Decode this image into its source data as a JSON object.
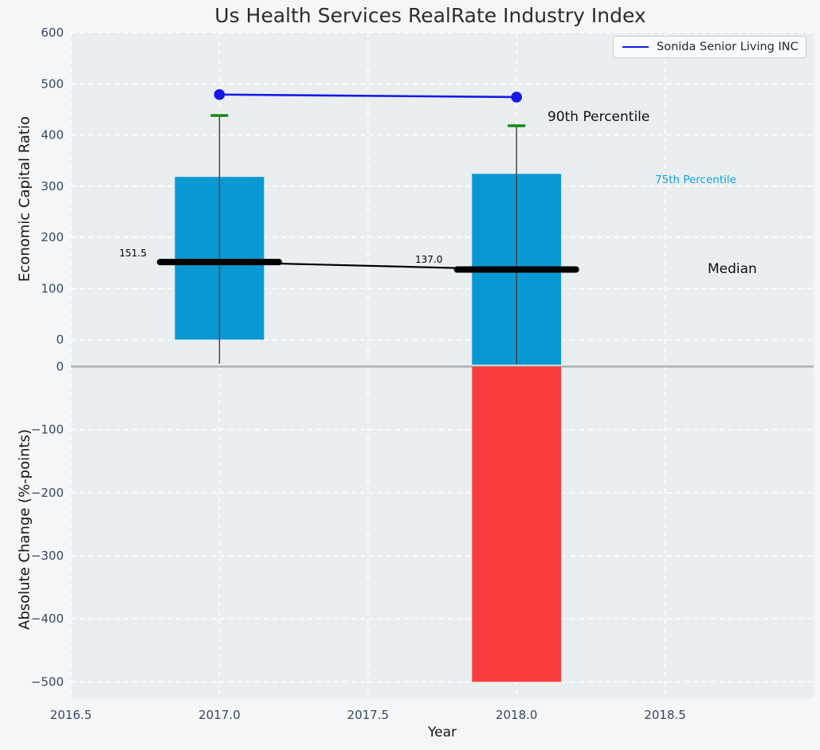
{
  "chart_data": {
    "type": "mixed",
    "title": "Us Health Services RealRate Industry Index",
    "xlabel": "Year",
    "xlim": [
      2016.5,
      2019.0
    ],
    "xticks": [
      {
        "v": 2016.5,
        "label": "2016.5"
      },
      {
        "v": 2017.0,
        "label": "2017.0"
      },
      {
        "v": 2017.5,
        "label": "2017.5"
      },
      {
        "v": 2018.0,
        "label": "2018.0"
      },
      {
        "v": 2018.5,
        "label": "2018.5"
      }
    ],
    "bar_half_width_years": 0.15,
    "grid": true,
    "legend": {
      "position": "upper right",
      "entries": [
        {
          "label": "Sonida Senior Living INC",
          "color": "#1717e8"
        }
      ]
    },
    "colors": {
      "figure_bg": "#f4f6f8",
      "axes_bg": "#e9eef0",
      "grid": "#ffffff",
      "box_fill": "#0999d2",
      "neg_bar_fill": "#fa3e3e",
      "company_line": "#1717e8",
      "percentile_cap": "#0e8810",
      "whisker": "#3d3d3d",
      "median": "#000000",
      "tick_text": "#37485e",
      "zero_line": "#adb0b3"
    },
    "top_panel": {
      "ylabel": "Economic Capital Ratio",
      "ylim": [
        -49,
        600
      ],
      "yticks": [
        {
          "v": 600,
          "label": "600"
        },
        {
          "v": 500,
          "label": "500"
        },
        {
          "v": 400,
          "label": "400"
        },
        {
          "v": 300,
          "label": "300"
        },
        {
          "v": 200,
          "label": "200"
        },
        {
          "v": 100,
          "label": "100"
        },
        {
          "v": 0,
          "label": "0"
        }
      ],
      "boxes": [
        {
          "year": 2017,
          "p25": 0,
          "p75": 318,
          "median": 151.5,
          "p90": 438,
          "whisker_low": -47,
          "median_label": "151.5"
        },
        {
          "year": 2018,
          "p25": -49,
          "p75": 324,
          "median": 137.0,
          "p90": 418,
          "whisker_low": -47,
          "median_label": "137.0"
        }
      ],
      "series": [
        {
          "name": "Sonida Senior Living INC",
          "x": [
            2017,
            2018
          ],
          "y": [
            479,
            474
          ]
        }
      ],
      "annotations": [
        {
          "text": "90th Percentile",
          "color": "#111111"
        },
        {
          "text": "75th Percentile",
          "color": "#169fd6"
        },
        {
          "text": "Median",
          "color": "#111111"
        }
      ]
    },
    "bottom_panel": {
      "ylabel": "Absolute Change (%-points)",
      "ylim": [
        -526,
        3
      ],
      "yticks": [
        {
          "v": 0,
          "label": "0"
        },
        {
          "v": -100,
          "label": "−100"
        },
        {
          "v": -200,
          "label": "−200"
        },
        {
          "v": -300,
          "label": "−300"
        },
        {
          "v": -400,
          "label": "−400"
        },
        {
          "v": -500,
          "label": "−500"
        }
      ],
      "bars": [
        {
          "year": 2018,
          "value": -500
        }
      ]
    }
  }
}
